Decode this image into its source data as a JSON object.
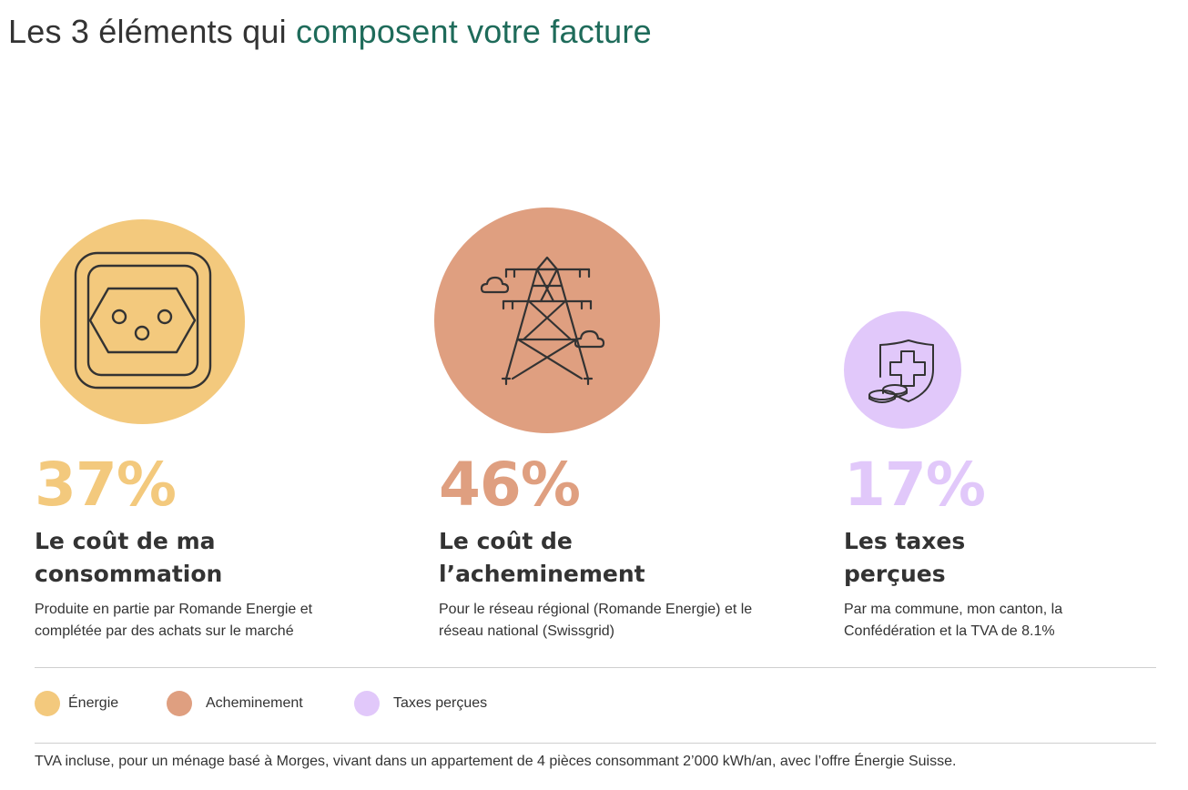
{
  "title": {
    "prefix": "Les 3 éléments qui ",
    "accent": "composent votre facture"
  },
  "colors": {
    "energie": "#f3c97d",
    "acheminement": "#df9f80",
    "taxes": "#e1c8fa",
    "accent": "#1e6b5a",
    "text": "#333333"
  },
  "elements": [
    {
      "percent": "37%",
      "heading": "Le coût de ma consommation",
      "description": "Produite en partie par Romande Energie et complétée par des achats sur le marché",
      "icon": "power-socket-icon"
    },
    {
      "percent": "46%",
      "heading": "Le coût de l’acheminement",
      "description": "Pour le réseau régional (Romande Energie) et le réseau national (Swissgrid)",
      "icon": "power-pylon-icon"
    },
    {
      "percent": "17%",
      "heading": "Les taxes perçues",
      "description": "Par ma commune, mon canton, la Confédération et la TVA de 8.1%",
      "icon": "swiss-shield-coins-icon"
    }
  ],
  "legend": [
    {
      "label": "Énergie",
      "color": "#f3c97d"
    },
    {
      "label": "Acheminement",
      "color": "#df9f80"
    },
    {
      "label": "Taxes perçues",
      "color": "#e1c8fa"
    }
  ],
  "footnote": "TVA incluse, pour un ménage basé à Morges, vivant dans un appartement de 4 pièces consommant 2’000 kWh/an, avec l’offre Énergie Suisse."
}
